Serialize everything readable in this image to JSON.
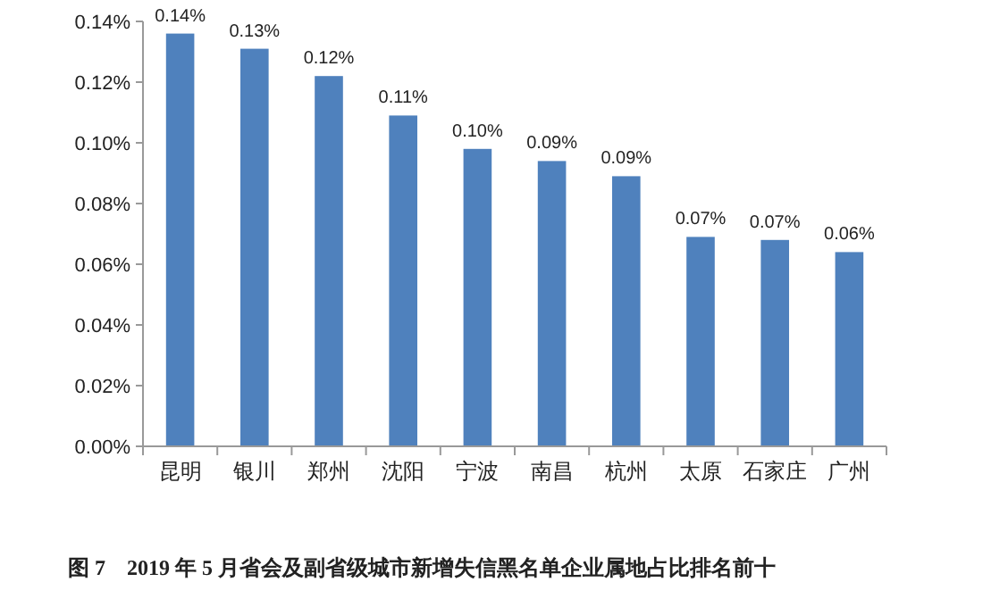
{
  "chart_data": {
    "type": "bar",
    "categories": [
      "昆明",
      "银川",
      "郑州",
      "沈阳",
      "宁波",
      "南昌",
      "杭州",
      "太原",
      "石家庄",
      "广州"
    ],
    "series": [
      {
        "color": "#4f81bd",
        "values": [
          0.136,
          0.131,
          0.122,
          0.109,
          0.098,
          0.094,
          0.089,
          0.069,
          0.068,
          0.064
        ],
        "value_labels": [
          "0.14%",
          "0.13%",
          "0.12%",
          "0.11%",
          "0.10%",
          "0.09%",
          "0.09%",
          "0.07%",
          "0.07%",
          "0.06%"
        ]
      }
    ],
    "ylim": [
      0,
      0.14
    ],
    "yticks": [
      {
        "value": 0,
        "label": "0.00%"
      },
      {
        "value": 0.02,
        "label": "0.02%"
      },
      {
        "value": 0.04,
        "label": "0.04%"
      },
      {
        "value": 0.06,
        "label": "0.06%"
      },
      {
        "value": 0.08,
        "label": "0.08%"
      },
      {
        "value": 0.1,
        "label": "0.10%"
      },
      {
        "value": 0.12,
        "label": "0.12%"
      },
      {
        "value": 0.14,
        "label": "0.14%"
      }
    ],
    "annotations": [
      "图 7　2019 年 5 月省会及副省级城市新增失信黑名单企业属地占比排名前十"
    ]
  }
}
